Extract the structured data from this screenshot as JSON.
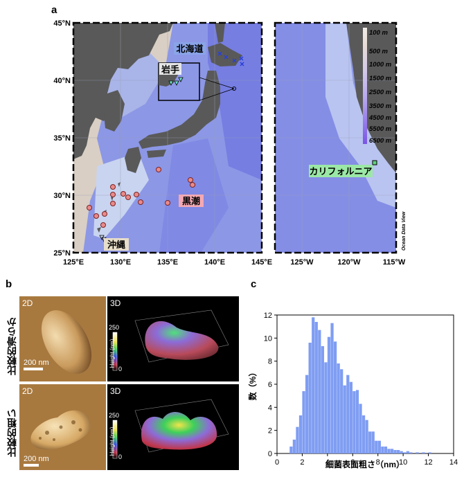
{
  "panels": {
    "a": "a",
    "b": "b",
    "c": "c"
  },
  "map": {
    "lat_labels": [
      "45°N",
      "40°N",
      "35°N",
      "30°N",
      "25°N"
    ],
    "lon_labels_japan": [
      "125°E",
      "130°E",
      "135°E",
      "140°E",
      "145°E"
    ],
    "lon_labels_ca": [
      "125°W",
      "120°W",
      "115°W"
    ],
    "region_labels": {
      "hokkaido": "北海道",
      "iwate": "岩手",
      "kuroshio": "黒潮",
      "okinawa": "沖縄",
      "california": "カリフォルニア"
    },
    "depth_scale": [
      "100 m",
      "500 m",
      "1000 m",
      "1500 m",
      "2500 m",
      "3500 m",
      "4500 m",
      "5500 m",
      "6500 m"
    ],
    "credit": "Ocean Data View",
    "colors": {
      "land": "#595959",
      "shelf": "#d9cfc4",
      "ocean": "#8c97e6",
      "deep": "#6c74e0",
      "kuroshio_marker": "#e98a8a",
      "hokkaido_marker": "#2a3fd8",
      "iwate_marker": "#6fe0c0",
      "california_marker": "#5fd17a"
    }
  },
  "afm": {
    "row1_label": "比較的滑らか",
    "row2_label": "比較的粗い",
    "tag_2d": "2D",
    "tag_3d": "3D",
    "scale_bar": "200 nm",
    "colorbar_max": "250",
    "colorbar_min": "0",
    "colorbar_label": "Height (nm)"
  },
  "chart_data": {
    "type": "bar",
    "xlabel": "細菌表面粗さ（nm）",
    "ylabel": "数（%）",
    "xlim": [
      0,
      14
    ],
    "ylim": [
      0,
      12
    ],
    "xticks": [
      0,
      2,
      4,
      6,
      8,
      10,
      12,
      14
    ],
    "yticks": [
      0,
      2,
      4,
      6,
      8,
      10,
      12
    ],
    "bin_width": 0.25,
    "bin_starts": [
      1.0,
      1.25,
      1.5,
      1.75,
      2.0,
      2.25,
      2.5,
      2.75,
      3.0,
      3.25,
      3.5,
      3.75,
      4.0,
      4.25,
      4.5,
      4.75,
      5.0,
      5.25,
      5.5,
      5.75,
      6.0,
      6.25,
      6.5,
      6.75,
      7.0,
      7.25,
      7.5,
      7.75,
      8.0,
      8.25,
      8.5,
      8.75,
      9.0,
      9.25,
      9.5,
      9.75,
      10.0,
      10.25,
      10.5,
      11.0,
      11.5,
      12.0
    ],
    "values": [
      0.6,
      1.2,
      2.3,
      3.3,
      5.4,
      6.8,
      9.6,
      11.8,
      11.4,
      10.7,
      9.3,
      7.9,
      10.1,
      11.3,
      9.7,
      7.8,
      7.3,
      5.9,
      6.8,
      6.2,
      5.4,
      5.5,
      4.3,
      3.3,
      2.9,
      1.9,
      1.9,
      1.1,
      1.1,
      0.6,
      0.6,
      0.4,
      0.4,
      0.3,
      0.3,
      0.2,
      0.1,
      0.2,
      0.1,
      0.1,
      0.1,
      0.1
    ],
    "bar_color": "#7f9df2"
  }
}
